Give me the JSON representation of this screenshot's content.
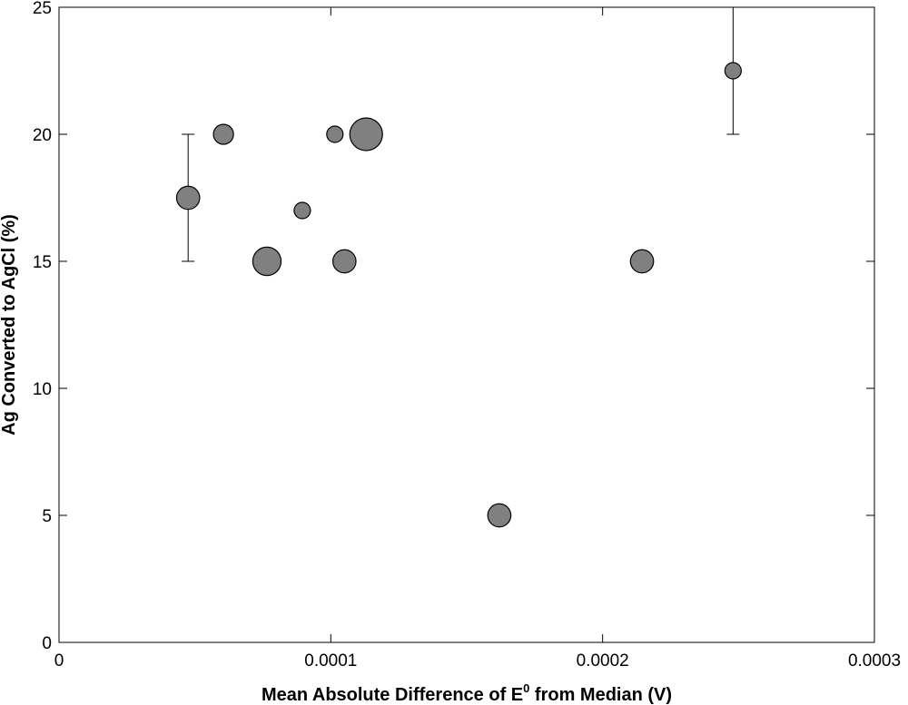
{
  "chart_data": {
    "type": "scatter",
    "title": "",
    "xlabel_main": "Mean Absolute Difference of E",
    "xlabel_sup": "0",
    "xlabel_tail": " from Median (V)",
    "ylabel": "Ag Converted to AgCl (%)",
    "xlim": [
      0,
      0.0003
    ],
    "ylim": [
      0,
      25
    ],
    "xticks": [
      0,
      0.0001,
      0.0002,
      0.0003
    ],
    "xtick_labels": [
      "0",
      "0.0001",
      "0.0002",
      "0.0003"
    ],
    "yticks": [
      0,
      5,
      10,
      15,
      20,
      25
    ],
    "ytick_labels": [
      "0",
      "5",
      "10",
      "15",
      "20",
      "25"
    ],
    "grid": false,
    "marker_fill": "#808080",
    "marker_stroke": "#000000",
    "points": [
      {
        "x": 4.75e-05,
        "y": 17.5,
        "size": 2,
        "err_low": 15,
        "err_high": 20
      },
      {
        "x": 6.05e-05,
        "y": 20,
        "size": 1.5
      },
      {
        "x": 7.65e-05,
        "y": 15,
        "size": 3
      },
      {
        "x": 8.95e-05,
        "y": 17,
        "size": 1
      },
      {
        "x": 0.0001015,
        "y": 20,
        "size": 1
      },
      {
        "x": 0.000105,
        "y": 15,
        "size": 2
      },
      {
        "x": 0.000113,
        "y": 20,
        "size": 4
      },
      {
        "x": 0.000162,
        "y": 5,
        "size": 2
      },
      {
        "x": 0.0002145,
        "y": 15,
        "size": 2
      },
      {
        "x": 0.000248,
        "y": 22.5,
        "size": 1,
        "err_low": 20,
        "err_high": 25
      }
    ]
  }
}
